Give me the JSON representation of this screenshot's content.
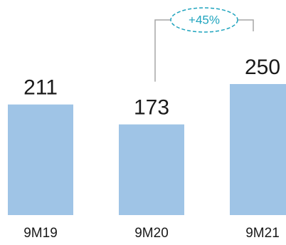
{
  "chart_data": {
    "type": "bar",
    "categories": [
      "9M19",
      "9M20",
      "9M21"
    ],
    "values": [
      211,
      173,
      250
    ],
    "data_labels": [
      "211",
      "173",
      "250"
    ],
    "ylim": [
      0,
      250
    ],
    "grid": false,
    "bar_color": "#9fc4e6",
    "annotations": [
      {
        "type": "growth-bracket",
        "from": "9M20",
        "to": "9M21",
        "text": "+45%",
        "color": "#1fa4be",
        "bracket_color": "#a6a6a6"
      }
    ]
  }
}
